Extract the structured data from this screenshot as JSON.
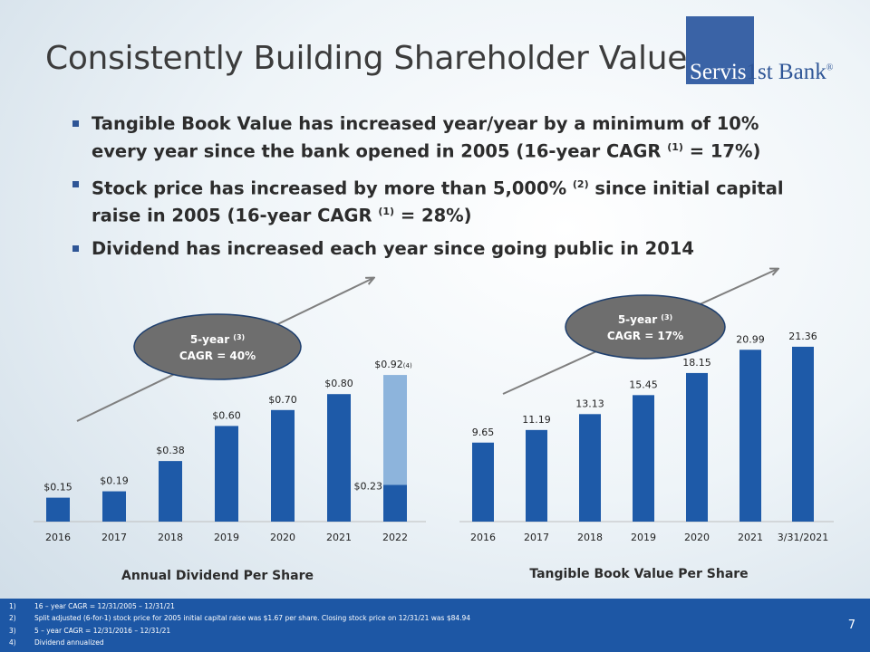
{
  "title": "Consistently Building Shareholder Value",
  "logo": {
    "part1": "Servis",
    "part2": "1st Bank",
    "reg": "®"
  },
  "bullets": [
    {
      "text1": "Tangible Book Value has increased year/year by a minimum of 10% every year since the bank opened in 2005 (16-year CAGR ",
      "sup": "(1)",
      "text2": " = 17%)"
    },
    {
      "text1": "Stock price has increased by more than 5,000% ",
      "sup": "(2)",
      "text2": " since initial capital raise in 2005 (16-year CAGR ",
      "sup2": "(1)",
      "text3": " = 28%)"
    },
    {
      "text1": "Dividend has increased each year since going public in 2014"
    }
  ],
  "chart_data": [
    {
      "type": "bar",
      "title": "Annual Dividend Per Share",
      "categories": [
        "2016",
        "2017",
        "2018",
        "2019",
        "2020",
        "2021",
        "2022"
      ],
      "values": [
        0.15,
        0.19,
        0.38,
        0.6,
        0.7,
        0.8,
        0.23
      ],
      "labels": [
        "$0.15",
        "$0.19",
        "$0.38",
        "$0.60",
        "$0.70",
        "$0.80",
        "$0.23"
      ],
      "annualized": {
        "category": "2022",
        "value": 0.92,
        "label": "$0.92",
        "note": "(4)"
      },
      "ylim": [
        0,
        1.0
      ],
      "callout": {
        "line1": "5-year ",
        "sup": "(3)",
        "line2": "CAGR = 40%"
      },
      "colors": {
        "bar": "#1e5aa8",
        "annualized": "#8db4dc",
        "callout": "#6e6e6e"
      }
    },
    {
      "type": "bar",
      "title": "Tangible Book Value Per Share",
      "categories": [
        "2016",
        "2017",
        "2018",
        "2019",
        "2020",
        "2021",
        "3/31/2021"
      ],
      "values": [
        9.65,
        11.19,
        13.13,
        15.45,
        18.15,
        20.99,
        21.36
      ],
      "labels": [
        "9.65",
        "11.19",
        "13.13",
        "15.45",
        "18.15",
        "20.99",
        "21.36"
      ],
      "ylim": [
        0,
        25
      ],
      "callout": {
        "line1": "5-year ",
        "sup": "(3)",
        "line2": "CAGR = 17%"
      },
      "colors": {
        "bar": "#1e5aa8",
        "callout": "#6e6e6e"
      }
    }
  ],
  "footnotes": [
    {
      "num": "1)",
      "text": "16 – year CAGR = 12/31/2005 – 12/31/21"
    },
    {
      "num": "2)",
      "text": "Split adjusted (6-for-1) stock price for 2005 initial capital raise was $1.67 per share. Closing stock price on 12/31/21 was $84.94"
    },
    {
      "num": "3)",
      "text": "5 – year CAGR = 12/31/2016 – 12/31/21"
    },
    {
      "num": "4)",
      "text": "Dividend annualized"
    }
  ],
  "page_number": "7"
}
